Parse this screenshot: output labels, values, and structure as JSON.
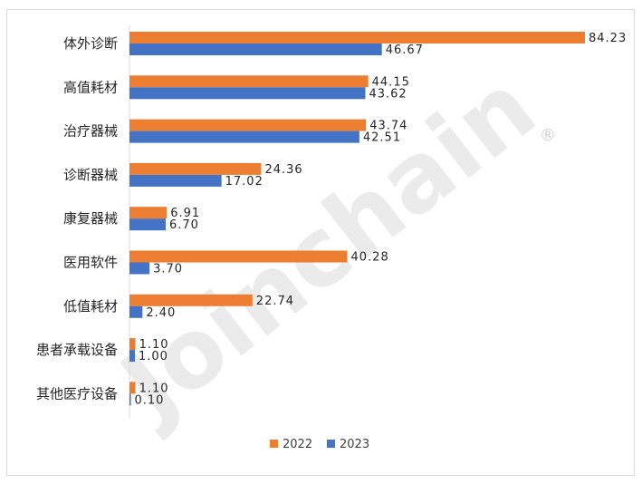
{
  "watermark": {
    "text": "Joinchain",
    "mark": "®"
  },
  "chart_data": {
    "type": "bar",
    "orientation": "horizontal",
    "categories": [
      "体外诊断",
      "高值耗材",
      "治疗器械",
      "诊断器械",
      "康复器械",
      "医用软件",
      "低值耗材",
      "患者承载设备",
      "其他医疗设备"
    ],
    "series": [
      {
        "name": "2022",
        "color": "#ED7D31",
        "values": [
          84.23,
          44.15,
          43.74,
          24.36,
          6.91,
          40.28,
          22.74,
          1.1,
          1.1
        ],
        "labels": [
          "84.23",
          "44.15",
          "43.74",
          "24.36",
          "6.91",
          "40.28",
          "22.74",
          "1.10",
          "1.10"
        ]
      },
      {
        "name": "2023",
        "color": "#4472C4",
        "values": [
          46.67,
          43.62,
          42.51,
          17.02,
          6.7,
          3.7,
          2.4,
          1.0,
          0.1
        ],
        "labels": [
          "46.67",
          "43.62",
          "42.51",
          "17.02",
          "6.70",
          "3.70",
          "2.40",
          "1.00",
          "0.10"
        ]
      }
    ],
    "xlim": [
      0,
      84.23
    ],
    "grid": false,
    "legend_position": "bottom"
  }
}
